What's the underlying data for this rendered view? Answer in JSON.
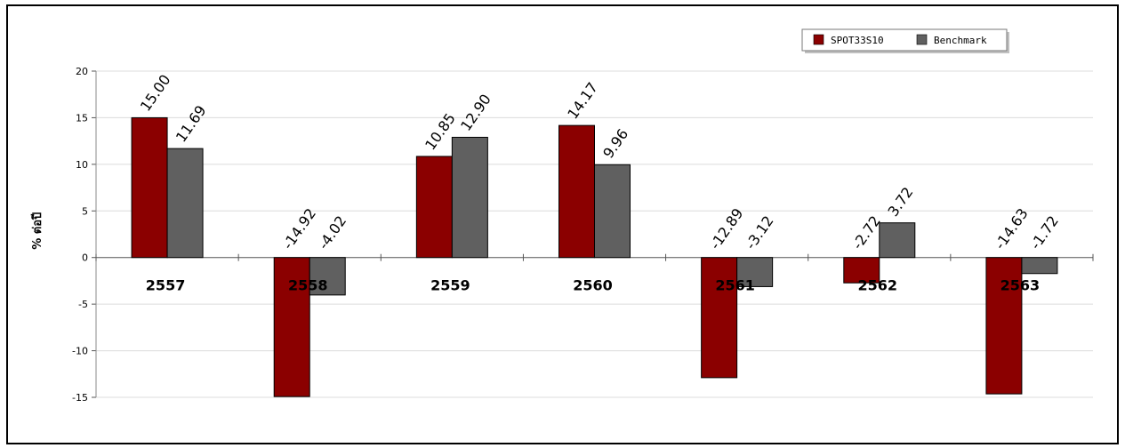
{
  "chart_data": {
    "type": "bar",
    "categories": [
      "2557",
      "2558",
      "2559",
      "2560",
      "2561",
      "2562",
      "2563"
    ],
    "series": [
      {
        "name": "SPOT33S10",
        "values": [
          15.0,
          -14.92,
          10.85,
          14.17,
          -12.89,
          -2.72,
          -14.63
        ],
        "color": "#8b0000"
      },
      {
        "name": "Benchmark",
        "values": [
          11.69,
          -4.02,
          12.9,
          9.96,
          -3.12,
          3.72,
          -1.72
        ],
        "color": "#606060"
      }
    ],
    "value_labels": [
      [
        "15.00",
        "-14.92",
        "10.85",
        "14.17",
        "-12.89",
        "-2.72",
        "-14.63"
      ],
      [
        "11.69",
        "-4.02",
        "12.90",
        "9.96",
        "-3.12",
        "3.72",
        "-1.72"
      ]
    ],
    "ylabel": "% ต่อปี",
    "yticks": [
      "20",
      "15",
      "10",
      "5",
      "0",
      "-5",
      "-10",
      "-15"
    ],
    "ytick_values": [
      20,
      15,
      10,
      5,
      0,
      -5,
      -10,
      -15
    ],
    "ylim": [
      -15,
      20
    ],
    "grid": true,
    "legend_position": "top-right"
  }
}
